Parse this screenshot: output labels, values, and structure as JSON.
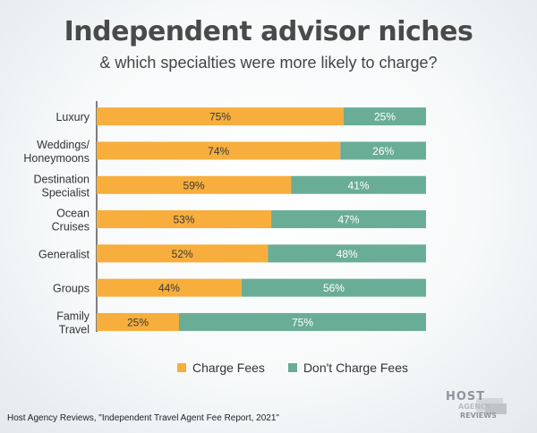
{
  "title": "Independent advisor niches",
  "subtitle": "& which specialties were more likely to charge?",
  "colors": {
    "charge": "#f7ae3c",
    "dont_charge": "#6aad97",
    "axis": "#555555"
  },
  "legend": [
    {
      "label": "Charge Fees",
      "color": "#f7ae3c"
    },
    {
      "label": "Don't Charge Fees",
      "color": "#6aad97"
    }
  ],
  "source": "Host Agency Reviews, \"Independent Travel Agent Fee Report, 2021\"",
  "logo": {
    "line1": "HOST",
    "line2": "AGENCY",
    "line3": "REVIEWS"
  },
  "chart_data": {
    "type": "bar",
    "orientation": "horizontal",
    "stacked": true,
    "categories": [
      [
        "Luxury"
      ],
      [
        "Weddings/",
        "Honeymoons"
      ],
      [
        "Destination",
        "Specialist"
      ],
      [
        "Ocean",
        "Cruises"
      ],
      [
        "Generalist"
      ],
      [
        "Groups"
      ],
      [
        "Family",
        "Travel"
      ]
    ],
    "series": [
      {
        "name": "Charge Fees",
        "values": [
          75,
          74,
          59,
          53,
          52,
          44,
          25
        ],
        "labels": [
          "75%",
          "74%",
          "59%",
          "53%",
          "52%",
          "44%",
          "25%"
        ]
      },
      {
        "name": "Don't Charge Fees",
        "values": [
          25,
          26,
          41,
          47,
          48,
          56,
          75
        ],
        "labels": [
          "25%",
          "26%",
          "41%",
          "47%",
          "48%",
          "56%",
          "75%"
        ]
      }
    ],
    "xlim": [
      0,
      100
    ],
    "legend_position": "bottom",
    "grid": false
  }
}
